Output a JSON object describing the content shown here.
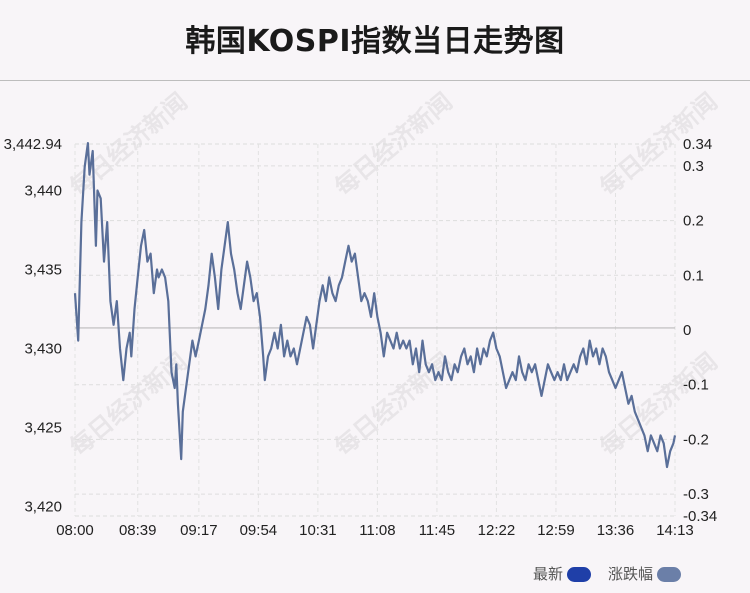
{
  "title": "韩国KOSPI指数当日走势图",
  "watermark": "每日经济新闻",
  "legend": {
    "latest_label": "最新",
    "latest_color": "#1f3fa8",
    "change_label": "涨跌幅",
    "change_color": "#6b7fa8"
  },
  "chart_data": {
    "type": "line",
    "title": "韩国KOSPI指数当日走势图",
    "x_tick_labels": [
      "08:00",
      "08:39",
      "09:17",
      "09:54",
      "10:31",
      "11:08",
      "11:45",
      "12:22",
      "12:59",
      "13:36",
      "14:13"
    ],
    "x_range": [
      "08:00",
      "14:13"
    ],
    "y_left_ticks": [
      "3,442.94",
      "3,440",
      "3,435",
      "3,430",
      "3,425",
      "3,420"
    ],
    "y_left_range": [
      3419.4,
      3442.94
    ],
    "y_right_ticks": [
      "0.34",
      "0.3",
      "0.2",
      "0.1",
      "0",
      "-0.1",
      "-0.2",
      "-0.3",
      "-0.34"
    ],
    "y_right_range": [
      -0.34,
      0.34
    ],
    "reference_value": 3431.3,
    "series": [
      {
        "name": "最新",
        "color": "#5a6f99",
        "points": [
          [
            "08:00",
            3433.5
          ],
          [
            "08:02",
            3430.5
          ],
          [
            "08:04",
            3438.0
          ],
          [
            "08:06",
            3441.5
          ],
          [
            "08:08",
            3443.0
          ],
          [
            "08:09",
            3441.0
          ],
          [
            "08:11",
            3442.5
          ],
          [
            "08:13",
            3436.5
          ],
          [
            "08:14",
            3440.0
          ],
          [
            "08:16",
            3439.5
          ],
          [
            "08:18",
            3435.5
          ],
          [
            "08:20",
            3438.0
          ],
          [
            "08:22",
            3433.0
          ],
          [
            "08:24",
            3431.5
          ],
          [
            "08:26",
            3433.0
          ],
          [
            "08:28",
            3430.0
          ],
          [
            "08:30",
            3428.0
          ],
          [
            "08:32",
            3430.0
          ],
          [
            "08:34",
            3431.0
          ],
          [
            "08:35",
            3429.5
          ],
          [
            "08:37",
            3432.5
          ],
          [
            "08:39",
            3434.5
          ],
          [
            "08:41",
            3436.5
          ],
          [
            "08:43",
            3437.5
          ],
          [
            "08:45",
            3435.5
          ],
          [
            "08:47",
            3436.0
          ],
          [
            "08:49",
            3433.5
          ],
          [
            "08:51",
            3435.0
          ],
          [
            "08:52",
            3434.5
          ],
          [
            "08:54",
            3435.0
          ],
          [
            "08:56",
            3434.5
          ],
          [
            "08:58",
            3433.0
          ],
          [
            "09:00",
            3428.5
          ],
          [
            "09:02",
            3427.5
          ],
          [
            "09:03",
            3429.0
          ],
          [
            "09:04",
            3426.5
          ],
          [
            "09:06",
            3423.0
          ],
          [
            "09:07",
            3426.0
          ],
          [
            "09:09",
            3427.5
          ],
          [
            "09:11",
            3429.0
          ],
          [
            "09:13",
            3430.5
          ],
          [
            "09:15",
            3429.5
          ],
          [
            "09:17",
            3430.5
          ],
          [
            "09:19",
            3431.5
          ],
          [
            "09:21",
            3432.5
          ],
          [
            "09:23",
            3434.0
          ],
          [
            "09:25",
            3436.0
          ],
          [
            "09:27",
            3434.5
          ],
          [
            "09:29",
            3432.5
          ],
          [
            "09:31",
            3435.0
          ],
          [
            "09:33",
            3436.5
          ],
          [
            "09:35",
            3438.0
          ],
          [
            "09:37",
            3436.0
          ],
          [
            "09:39",
            3435.0
          ],
          [
            "09:41",
            3433.5
          ],
          [
            "09:43",
            3432.5
          ],
          [
            "09:45",
            3434.0
          ],
          [
            "09:47",
            3435.5
          ],
          [
            "09:49",
            3434.5
          ],
          [
            "09:51",
            3433.0
          ],
          [
            "09:53",
            3433.5
          ],
          [
            "09:55",
            3432.0
          ],
          [
            "09:57",
            3429.5
          ],
          [
            "09:58",
            3428.0
          ],
          [
            "10:00",
            3429.5
          ],
          [
            "10:02",
            3430.0
          ],
          [
            "10:04",
            3431.0
          ],
          [
            "10:06",
            3430.0
          ],
          [
            "10:08",
            3431.5
          ],
          [
            "10:10",
            3429.5
          ],
          [
            "10:12",
            3430.5
          ],
          [
            "10:14",
            3429.5
          ],
          [
            "10:16",
            3430.0
          ],
          [
            "10:18",
            3429.0
          ],
          [
            "10:20",
            3430.0
          ],
          [
            "10:22",
            3431.0
          ],
          [
            "10:24",
            3432.0
          ],
          [
            "10:26",
            3431.5
          ],
          [
            "10:28",
            3430.0
          ],
          [
            "10:30",
            3431.5
          ],
          [
            "10:32",
            3433.0
          ],
          [
            "10:34",
            3434.0
          ],
          [
            "10:36",
            3433.0
          ],
          [
            "10:38",
            3434.5
          ],
          [
            "10:40",
            3433.5
          ],
          [
            "10:42",
            3433.0
          ],
          [
            "10:44",
            3434.0
          ],
          [
            "10:46",
            3434.5
          ],
          [
            "10:48",
            3435.5
          ],
          [
            "10:50",
            3436.5
          ],
          [
            "10:52",
            3435.5
          ],
          [
            "10:54",
            3436.0
          ],
          [
            "10:56",
            3434.5
          ],
          [
            "10:58",
            3433.0
          ],
          [
            "11:00",
            3433.5
          ],
          [
            "11:02",
            3433.0
          ],
          [
            "11:04",
            3432.0
          ],
          [
            "11:06",
            3433.5
          ],
          [
            "11:08",
            3432.0
          ],
          [
            "11:10",
            3431.0
          ],
          [
            "11:12",
            3429.5
          ],
          [
            "11:14",
            3431.0
          ],
          [
            "11:16",
            3430.5
          ],
          [
            "11:18",
            3430.0
          ],
          [
            "11:20",
            3431.0
          ],
          [
            "11:22",
            3430.0
          ],
          [
            "11:24",
            3430.5
          ],
          [
            "11:26",
            3430.0
          ],
          [
            "11:28",
            3430.5
          ],
          [
            "11:30",
            3429.0
          ],
          [
            "11:32",
            3430.0
          ],
          [
            "11:34",
            3428.5
          ],
          [
            "11:36",
            3430.5
          ],
          [
            "11:38",
            3429.0
          ],
          [
            "11:40",
            3428.5
          ],
          [
            "11:42",
            3429.0
          ],
          [
            "11:44",
            3428.0
          ],
          [
            "11:46",
            3428.5
          ],
          [
            "11:48",
            3428.0
          ],
          [
            "11:50",
            3429.5
          ],
          [
            "11:52",
            3428.5
          ],
          [
            "11:54",
            3428.0
          ],
          [
            "11:56",
            3429.0
          ],
          [
            "11:58",
            3428.5
          ],
          [
            "12:00",
            3429.5
          ],
          [
            "12:02",
            3430.0
          ],
          [
            "12:04",
            3429.0
          ],
          [
            "12:06",
            3429.5
          ],
          [
            "12:08",
            3428.5
          ],
          [
            "12:10",
            3430.0
          ],
          [
            "12:12",
            3429.0
          ],
          [
            "12:14",
            3430.0
          ],
          [
            "12:16",
            3429.5
          ],
          [
            "12:18",
            3430.5
          ],
          [
            "12:20",
            3431.0
          ],
          [
            "12:22",
            3430.0
          ],
          [
            "12:24",
            3429.5
          ],
          [
            "12:26",
            3428.5
          ],
          [
            "12:28",
            3427.5
          ],
          [
            "12:30",
            3428.0
          ],
          [
            "12:32",
            3428.5
          ],
          [
            "12:34",
            3428.0
          ],
          [
            "12:36",
            3429.5
          ],
          [
            "12:38",
            3428.5
          ],
          [
            "12:40",
            3428.0
          ],
          [
            "12:42",
            3429.0
          ],
          [
            "12:44",
            3428.5
          ],
          [
            "12:46",
            3429.0
          ],
          [
            "12:48",
            3428.0
          ],
          [
            "12:50",
            3427.0
          ],
          [
            "12:52",
            3428.0
          ],
          [
            "12:54",
            3429.0
          ],
          [
            "12:56",
            3428.5
          ],
          [
            "12:58",
            3428.0
          ],
          [
            "13:00",
            3428.5
          ],
          [
            "13:02",
            3428.0
          ],
          [
            "13:04",
            3429.0
          ],
          [
            "13:06",
            3428.0
          ],
          [
            "13:08",
            3428.5
          ],
          [
            "13:10",
            3429.0
          ],
          [
            "13:12",
            3428.5
          ],
          [
            "13:14",
            3429.5
          ],
          [
            "13:16",
            3430.0
          ],
          [
            "13:18",
            3429.0
          ],
          [
            "13:20",
            3430.5
          ],
          [
            "13:22",
            3429.5
          ],
          [
            "13:24",
            3430.0
          ],
          [
            "13:26",
            3429.0
          ],
          [
            "13:28",
            3430.0
          ],
          [
            "13:30",
            3429.5
          ],
          [
            "13:32",
            3428.5
          ],
          [
            "13:34",
            3428.0
          ],
          [
            "13:36",
            3427.5
          ],
          [
            "13:38",
            3428.0
          ],
          [
            "13:40",
            3428.5
          ],
          [
            "13:42",
            3427.5
          ],
          [
            "13:44",
            3426.5
          ],
          [
            "13:46",
            3427.0
          ],
          [
            "13:48",
            3426.0
          ],
          [
            "13:50",
            3425.5
          ],
          [
            "13:52",
            3425.0
          ],
          [
            "13:54",
            3424.5
          ],
          [
            "13:56",
            3423.5
          ],
          [
            "13:58",
            3424.5
          ],
          [
            "14:00",
            3424.0
          ],
          [
            "14:02",
            3423.5
          ],
          [
            "14:04",
            3424.5
          ],
          [
            "14:06",
            3424.0
          ],
          [
            "14:08",
            3422.5
          ],
          [
            "14:10",
            3423.5
          ],
          [
            "14:12",
            3424.0
          ],
          [
            "14:13",
            3424.5
          ]
        ]
      }
    ]
  }
}
